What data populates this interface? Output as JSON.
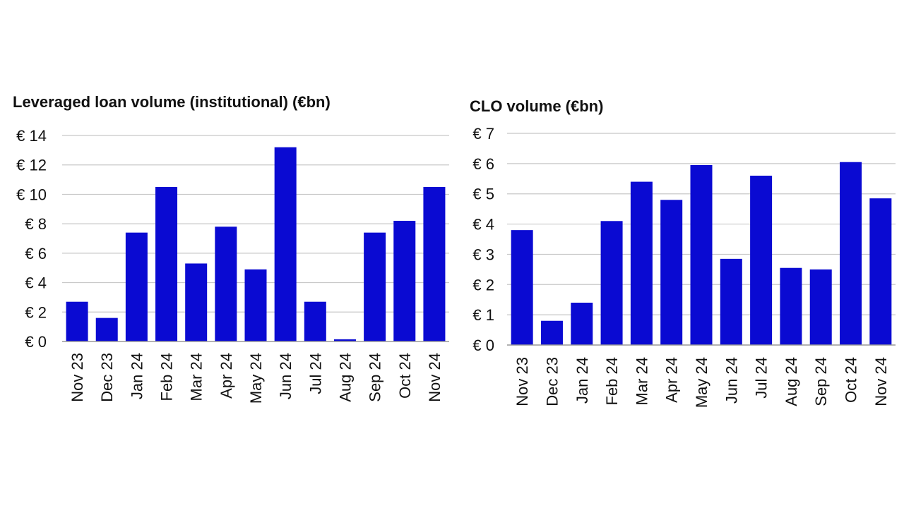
{
  "chart_data": [
    {
      "type": "bar",
      "title": "Leveraged loan volume (institutional) (€bn)",
      "categories": [
        "Nov 23",
        "Dec 23",
        "Jan 24",
        "Feb 24",
        "Mar 24",
        "Apr 24",
        "May 24",
        "Jun 24",
        "Jul 24",
        "Aug 24",
        "Sep 24",
        "Oct 24",
        "Nov 24"
      ],
      "values": [
        2.7,
        1.6,
        7.4,
        10.5,
        5.3,
        7.8,
        4.9,
        13.2,
        2.7,
        0.15,
        7.4,
        8.2,
        10.5
      ],
      "yticks": [
        0,
        2,
        4,
        6,
        8,
        10,
        12,
        14
      ],
      "ytick_labels": [
        "€ 0",
        "€ 2",
        "€ 4",
        "€ 6",
        "€ 8",
        "€ 10",
        "€ 12",
        "€ 14"
      ],
      "ylim": [
        0,
        14
      ],
      "xlabel": "",
      "ylabel": "",
      "grid": true,
      "legend": "none"
    },
    {
      "type": "bar",
      "title": "CLO volume (€bn)",
      "categories": [
        "Nov 23",
        "Dec 23",
        "Jan 24",
        "Feb 24",
        "Mar 24",
        "Apr 24",
        "May 24",
        "Jun 24",
        "Jul 24",
        "Aug 24",
        "Sep 24",
        "Oct 24",
        "Nov 24"
      ],
      "values": [
        3.8,
        0.8,
        1.4,
        4.1,
        5.4,
        4.8,
        5.95,
        2.85,
        5.6,
        2.55,
        2.5,
        6.05,
        4.85
      ],
      "yticks": [
        0,
        1,
        2,
        3,
        4,
        5,
        6,
        7
      ],
      "ytick_labels": [
        "€ 0",
        "€ 1",
        "€ 2",
        "€ 3",
        "€ 4",
        "€ 5",
        "€ 6",
        "€ 7"
      ],
      "ylim": [
        0,
        7
      ],
      "xlabel": "",
      "ylabel": "",
      "grid": true,
      "legend": "none"
    }
  ],
  "colors": {
    "bar": "#0a0ad2",
    "grid": "#c8c8c8",
    "text": "#111111"
  }
}
